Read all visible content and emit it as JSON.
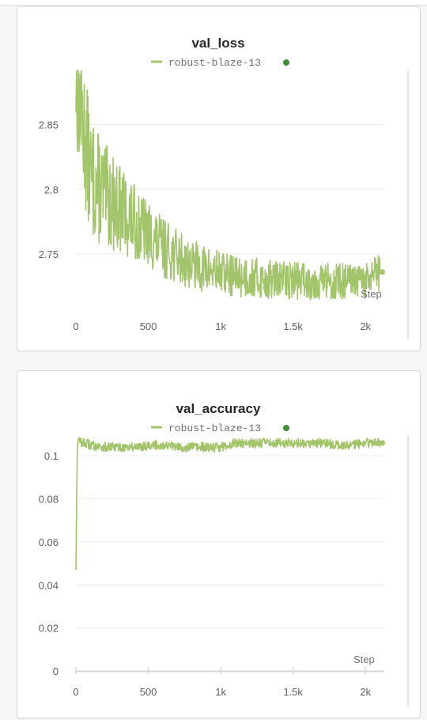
{
  "chart_data": [
    {
      "type": "line",
      "title": "val_loss",
      "legend": "robust-blaze-13",
      "xlabel": "Step",
      "ylabel": "",
      "xlim": [
        0,
        2130
      ],
      "ylim": [
        2.712,
        2.892
      ],
      "xticks": [
        0,
        500,
        1000,
        1500,
        2000
      ],
      "xtick_labels": [
        "0",
        "500",
        "1k",
        "1.5k",
        "2k"
      ],
      "yticks": [
        2.75,
        2.8,
        2.85
      ],
      "ytick_labels": [
        "2.75",
        "2.8",
        "2.85"
      ],
      "grid": true,
      "legend_position": "top-center",
      "series": [
        {
          "name": "robust-blaze-13",
          "x": [
            0,
            100,
            200,
            300,
            400,
            500,
            600,
            700,
            800,
            900,
            1000,
            1100,
            1200,
            1300,
            1400,
            1500,
            1600,
            1700,
            1800,
            1900,
            2000,
            2100
          ],
          "y": [
            2.89,
            2.81,
            2.795,
            2.785,
            2.775,
            2.765,
            2.755,
            2.748,
            2.742,
            2.738,
            2.735,
            2.733,
            2.732,
            2.73,
            2.73,
            2.73,
            2.729,
            2.729,
            2.729,
            2.728,
            2.728,
            2.736
          ]
        }
      ]
    },
    {
      "type": "line",
      "title": "val_accuracy",
      "legend": "robust-blaze-13",
      "xlabel": "Step",
      "ylabel": "",
      "xlim": [
        0,
        2130
      ],
      "ylim": [
        0,
        0.11
      ],
      "xticks": [
        0,
        500,
        1000,
        1500,
        2000
      ],
      "xtick_labels": [
        "0",
        "500",
        "1k",
        "1.5k",
        "2k"
      ],
      "yticks": [
        0,
        0.02,
        0.04,
        0.06,
        0.08,
        0.1
      ],
      "ytick_labels": [
        "0",
        "0.02",
        "0.04",
        "0.06",
        "0.08",
        "0.1"
      ],
      "grid": true,
      "legend_position": "top-center",
      "series": [
        {
          "name": "robust-blaze-13",
          "x": [
            0,
            10,
            100,
            200,
            300,
            400,
            500,
            600,
            700,
            800,
            900,
            1000,
            1100,
            1200,
            1300,
            1400,
            1500,
            1600,
            1700,
            1800,
            1900,
            2000,
            2100
          ],
          "y": [
            0.047,
            0.107,
            0.105,
            0.104,
            0.104,
            0.104,
            0.105,
            0.105,
            0.104,
            0.104,
            0.104,
            0.104,
            0.106,
            0.106,
            0.106,
            0.106,
            0.106,
            0.106,
            0.106,
            0.105,
            0.105,
            0.106,
            0.106
          ]
        }
      ]
    }
  ],
  "colors": {
    "series": "#a2c46a",
    "end_dot": "#3f8f3a",
    "grid": "#ececef",
    "axis": "#d5d7dc"
  }
}
